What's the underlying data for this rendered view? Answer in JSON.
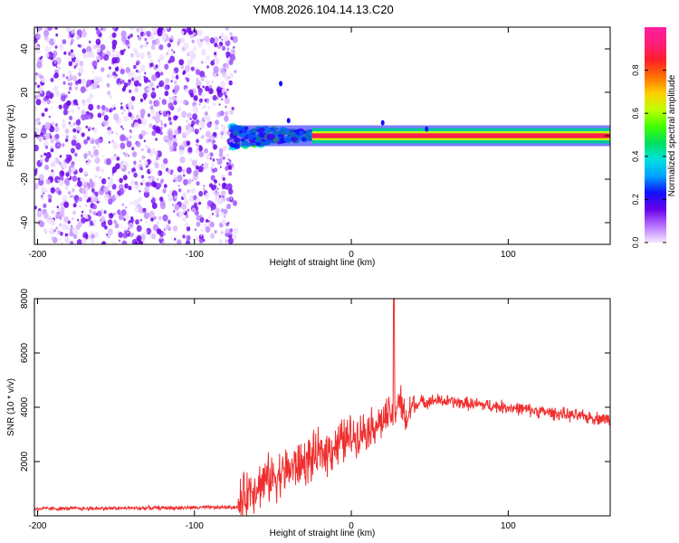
{
  "title": "YM08.2026.104.14.13.C20",
  "spectrogram": {
    "type": "heatmap",
    "xlabel": "Height of straight line (km)",
    "ylabel": "Frequency (Hz)",
    "xlim": [
      -202,
      165
    ],
    "ylim": [
      -50,
      50
    ],
    "xticks": [
      -200,
      -100,
      0,
      100
    ],
    "yticks": [
      -40,
      -20,
      0,
      20,
      40
    ],
    "noise_region_x": [
      -200,
      -77
    ],
    "signal_start_x": -77,
    "signal_line_frequency": 0,
    "signal_band_hz": 1.6,
    "colorbar": {
      "label": "Normalized spectral amplitude",
      "range": [
        0.0,
        1.0
      ],
      "ticks": [
        0.0,
        0.2,
        0.4,
        0.6,
        0.8
      ],
      "colors": [
        "#f4e8ff",
        "#b873ff",
        "#6a00e8",
        "#1010ff",
        "#00a0ff",
        "#00e0e0",
        "#00e060",
        "#40ff00",
        "#c0ff00",
        "#ffd000",
        "#ff7000",
        "#ff1e28",
        "#ff1e78",
        "#ff1e9e"
      ]
    }
  },
  "snr_plot": {
    "type": "line",
    "xlabel": "Height of straight line (km)",
    "ylabel": "SNR (10 * v/v)",
    "xlim": [
      -202,
      165
    ],
    "ylim": [
      0,
      8000
    ],
    "xticks": [
      -200,
      -100,
      0,
      100
    ],
    "yticks": [
      2000,
      4000,
      6000,
      8000
    ],
    "color": "#f02e2e",
    "points": [
      {
        "x": -202,
        "y": 260
      },
      {
        "x": -150,
        "y": 280
      },
      {
        "x": -100,
        "y": 300
      },
      {
        "x": -72,
        "y": 320
      },
      {
        "x": -66,
        "y": 900
      },
      {
        "x": -55,
        "y": 1300
      },
      {
        "x": -40,
        "y": 1700
      },
      {
        "x": -25,
        "y": 2100
      },
      {
        "x": -10,
        "y": 2600
      },
      {
        "x": 0,
        "y": 2900
      },
      {
        "x": 10,
        "y": 3200
      },
      {
        "x": 20,
        "y": 3500
      },
      {
        "x": 28,
        "y": 3800
      },
      {
        "x": 30,
        "y": 4400
      },
      {
        "x": 35,
        "y": 3400
      },
      {
        "x": 38,
        "y": 4000
      },
      {
        "x": 45,
        "y": 4200
      },
      {
        "x": 55,
        "y": 4250
      },
      {
        "x": 80,
        "y": 4100
      },
      {
        "x": 100,
        "y": 4000
      },
      {
        "x": 120,
        "y": 3850
      },
      {
        "x": 140,
        "y": 3700
      },
      {
        "x": 165,
        "y": 3550
      }
    ],
    "peak": {
      "x": 27,
      "y": 8000
    }
  }
}
